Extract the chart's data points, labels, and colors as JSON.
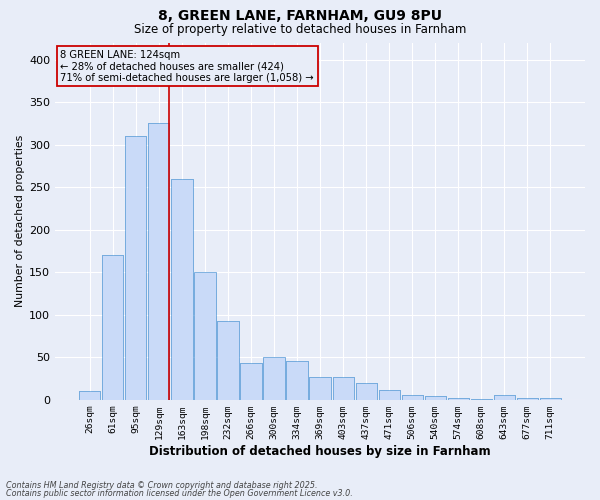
{
  "title_line1": "8, GREEN LANE, FARNHAM, GU9 8PU",
  "title_line2": "Size of property relative to detached houses in Farnham",
  "xlabel": "Distribution of detached houses by size in Farnham",
  "ylabel": "Number of detached properties",
  "footer_line1": "Contains HM Land Registry data © Crown copyright and database right 2025.",
  "footer_line2": "Contains public sector information licensed under the Open Government Licence v3.0.",
  "bar_labels": [
    "26sqm",
    "61sqm",
    "95sqm",
    "129sqm",
    "163sqm",
    "198sqm",
    "232sqm",
    "266sqm",
    "300sqm",
    "334sqm",
    "369sqm",
    "403sqm",
    "437sqm",
    "471sqm",
    "506sqm",
    "540sqm",
    "574sqm",
    "608sqm",
    "643sqm",
    "677sqm",
    "711sqm"
  ],
  "bar_heights": [
    10,
    170,
    310,
    325,
    260,
    150,
    93,
    43,
    50,
    45,
    27,
    27,
    20,
    11,
    5,
    4,
    2,
    1,
    5,
    2,
    2
  ],
  "bar_color": "#c9daf8",
  "bar_edge_color": "#6fa8dc",
  "background_color": "#e8edf8",
  "grid_color": "#ffffff",
  "red_line_index": 3,
  "red_line_color": "#cc0000",
  "annotation_text": "8 GREEN LANE: 124sqm\n← 28% of detached houses are smaller (424)\n71% of semi-detached houses are larger (1,058) →",
  "annotation_box_edgecolor": "#cc0000",
  "annotation_text_color": "#000000",
  "ylim": [
    0,
    420
  ],
  "yticks": [
    0,
    50,
    100,
    150,
    200,
    250,
    300,
    350,
    400
  ]
}
